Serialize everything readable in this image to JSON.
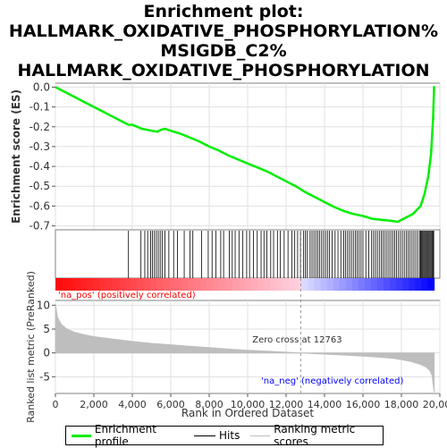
{
  "title_lines": [
    "Enrichment plot:",
    "HALLMARK_OXIDATIVE_PHOSPHORYLATION%",
    "MSIGDB_C2%",
    "HALLMARK_OXIDATIVE_PHOSPHORYLATION"
  ],
  "colors": {
    "es_line": "#00ee00",
    "hits": "#000000",
    "metric_fill": "#bebebe",
    "pos_label": "#ff0000",
    "neg_label": "#0000ff",
    "zero_cross": "#999999",
    "grid": "#e0e0e0"
  },
  "legend": {
    "enrichment_profile": "Enrichment profile",
    "hits": "Hits",
    "ranking_scores": "Ranking metric scores"
  },
  "chart_data": {
    "type": "line",
    "x_label": "Rank in Ordered Dataset",
    "es_ylabel": "Enrichment score (ES)",
    "metric_ylabel": "Ranked list metric (PreRanked)",
    "xlim": [
      0,
      20000
    ],
    "x_ticks": [
      0,
      2000,
      4000,
      6000,
      8000,
      10000,
      12000,
      14000,
      16000,
      18000,
      20000
    ],
    "es_ylim": [
      -0.72,
      0.02
    ],
    "es_ticks": [
      0.0,
      -0.1,
      -0.2,
      -0.3,
      -0.4,
      -0.5,
      -0.6,
      -0.7
    ],
    "es_tick_labels": [
      "0.0",
      "-0.1",
      "-0.2",
      "-0.3",
      "-0.4",
      "-0.5",
      "-0.6",
      "-0.7"
    ],
    "metric_ylim": [
      -8.5,
      11
    ],
    "metric_ticks": [
      10,
      5,
      0,
      -5
    ],
    "metric_tick_labels": [
      "10",
      "5",
      "0",
      "-5"
    ],
    "n_genes": 19700,
    "zero_cross_rank": 12763,
    "zero_cross_label": "Zero cross at 12763",
    "pos_label": "'na_pos' (positively correlated)",
    "neg_label": "'na_neg' (negatively correlated)",
    "es_curve": {
      "x": [
        0,
        500,
        1000,
        1500,
        2000,
        2500,
        3000,
        3500,
        3800,
        4000,
        4500,
        5000,
        5300,
        5500,
        5700,
        6000,
        6500,
        7000,
        7500,
        8000,
        8500,
        9000,
        9500,
        10000,
        10500,
        11000,
        11500,
        12000,
        12500,
        13000,
        13500,
        14000,
        14500,
        15000,
        15500,
        16000,
        16500,
        17000,
        17500,
        17800,
        18000,
        18300,
        18600,
        18800,
        19000,
        19200,
        19400,
        19550,
        19650,
        19700
      ],
      "y": [
        0.0,
        -0.025,
        -0.05,
        -0.075,
        -0.1,
        -0.125,
        -0.15,
        -0.175,
        -0.19,
        -0.19,
        -0.21,
        -0.22,
        -0.225,
        -0.215,
        -0.21,
        -0.22,
        -0.235,
        -0.255,
        -0.275,
        -0.3,
        -0.32,
        -0.345,
        -0.365,
        -0.385,
        -0.405,
        -0.425,
        -0.45,
        -0.475,
        -0.5,
        -0.53,
        -0.555,
        -0.58,
        -0.605,
        -0.625,
        -0.64,
        -0.65,
        -0.665,
        -0.67,
        -0.675,
        -0.68,
        -0.67,
        -0.655,
        -0.64,
        -0.62,
        -0.6,
        -0.54,
        -0.45,
        -0.33,
        -0.15,
        0.005
      ]
    },
    "hits": [
      3800,
      4450,
      4650,
      4800,
      4950,
      5050,
      5150,
      5250,
      5350,
      5450,
      5550,
      5700,
      5900,
      6150,
      6350,
      6700,
      7000,
      7150,
      7600,
      7950,
      8150,
      8350,
      8600,
      8750,
      9050,
      9200,
      9350,
      9550,
      9750,
      9950,
      10100,
      10300,
      10500,
      10700,
      10850,
      11000,
      11200,
      11350,
      11550,
      11700,
      11900,
      12100,
      12300,
      12450,
      12600,
      12750,
      12900,
      13000,
      13100,
      13250,
      13350,
      13450,
      13550,
      13650,
      13750,
      13850,
      13950,
      14050,
      14150,
      14250,
      14400,
      14550,
      14700,
      14850,
      15000,
      15100,
      15200,
      15300,
      15400,
      15500,
      15600,
      15700,
      15800,
      15900,
      16000,
      16150,
      16300,
      16450,
      16550,
      16650,
      16750,
      16850,
      16950,
      17050,
      17150,
      17250,
      17350,
      17450,
      17550,
      17650,
      17750,
      17850,
      17950,
      18050,
      18150,
      18250,
      18350,
      18450,
      18550,
      18650,
      18750,
      18850,
      18950,
      19000,
      19050,
      19100,
      19150,
      19200,
      19250,
      19300,
      19350,
      19400,
      19450,
      19500,
      19550,
      19600,
      19650,
      19680
    ],
    "metric_curve": {
      "x": [
        0,
        100,
        300,
        600,
        1000,
        1500,
        2000,
        3000,
        4000,
        5000,
        6000,
        7000,
        8000,
        9000,
        10000,
        11000,
        12000,
        12763,
        13500,
        14500,
        15500,
        16500,
        17500,
        18000,
        18500,
        19000,
        19300,
        19500,
        19600,
        19650,
        19700
      ],
      "y": [
        10.2,
        7.5,
        6.0,
        5.0,
        4.3,
        3.8,
        3.4,
        2.9,
        2.4,
        2.0,
        1.7,
        1.4,
        1.1,
        0.8,
        0.55,
        0.35,
        0.15,
        0.0,
        -0.15,
        -0.35,
        -0.55,
        -0.8,
        -1.1,
        -1.4,
        -1.8,
        -2.4,
        -3.0,
        -3.8,
        -4.8,
        -6.5,
        -8.2
      ]
    }
  }
}
